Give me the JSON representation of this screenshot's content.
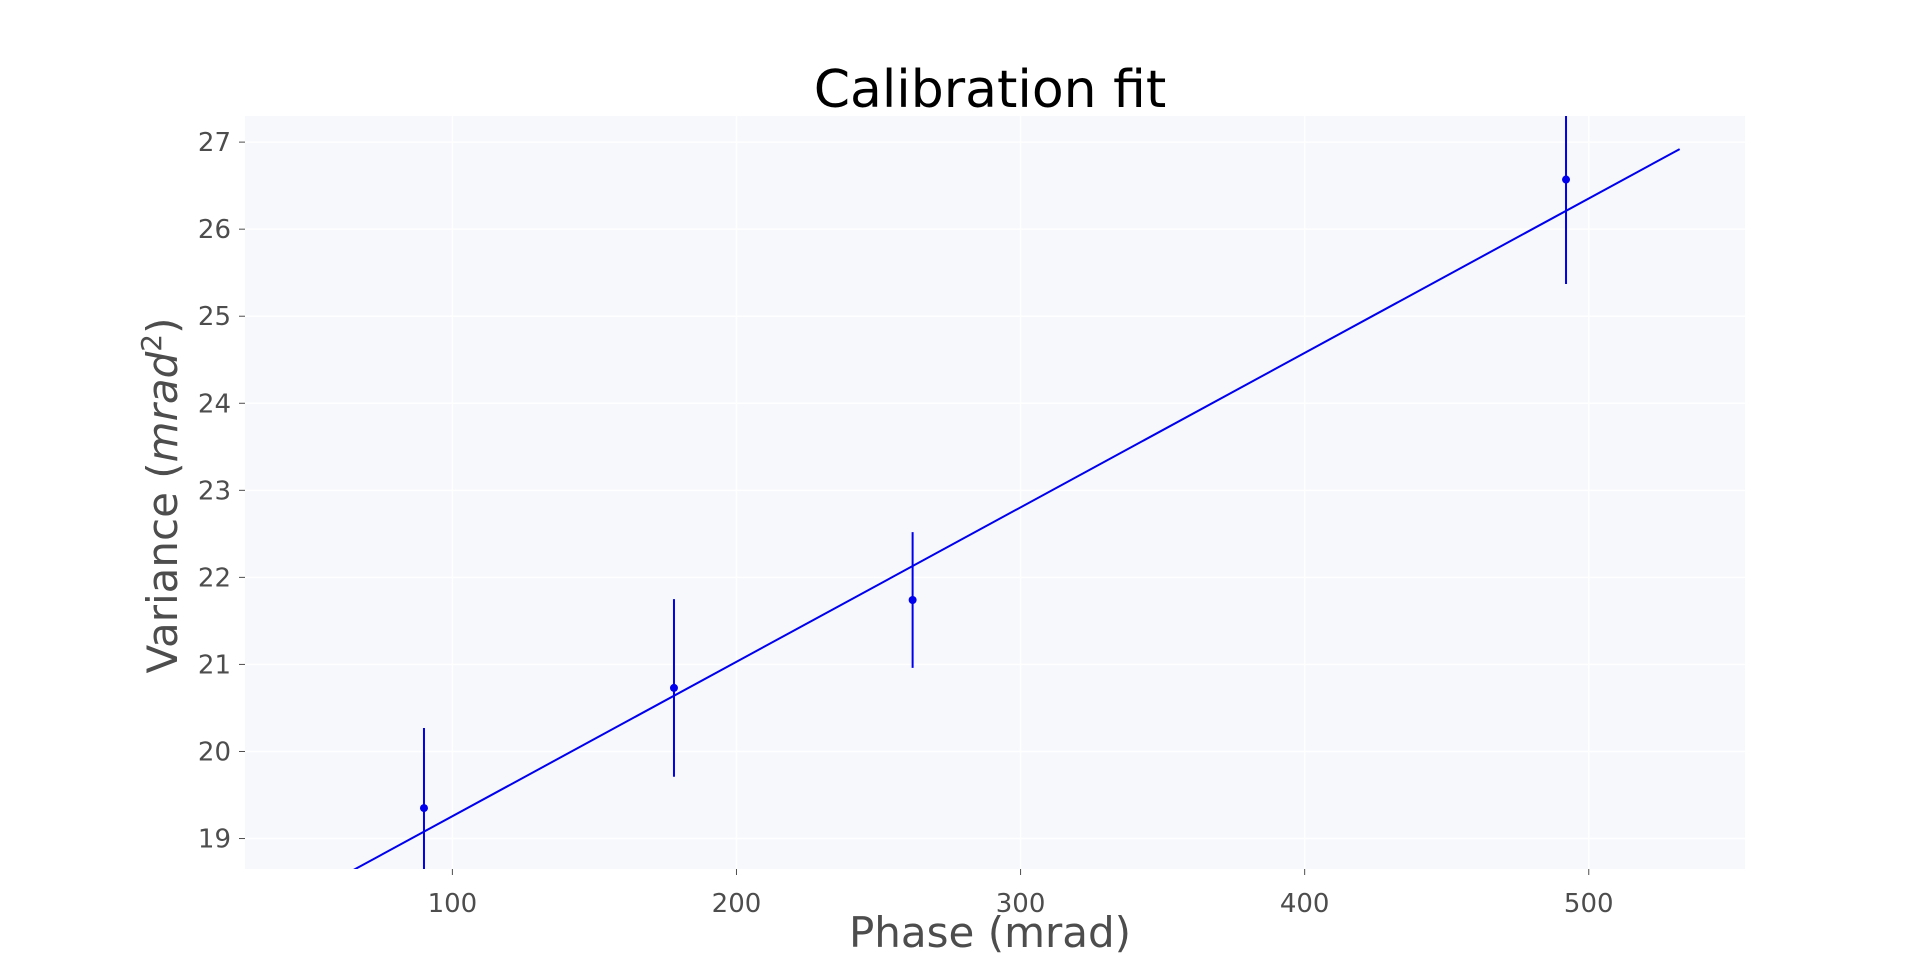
{
  "chart_data": {
    "type": "scatter",
    "title": "Calibration fit",
    "xlabel": "Phase (mrad)",
    "ylabel_main": "Variance (",
    "ylabel_unit": "mrad",
    "ylabel_sup": "2",
    "ylabel_close": ")",
    "xlim": [
      27,
      555
    ],
    "ylim": [
      18.65,
      27.3
    ],
    "x_ticks": [
      100,
      200,
      300,
      400,
      500
    ],
    "y_ticks": [
      19,
      20,
      21,
      22,
      23,
      24,
      25,
      26,
      27
    ],
    "grid": true,
    "series": [
      {
        "kind": "errorbar",
        "color": "#0000ee",
        "points": [
          {
            "x": 90,
            "y": 19.35,
            "err": 0.92
          },
          {
            "x": 178,
            "y": 20.73,
            "err": 1.02
          },
          {
            "x": 262,
            "y": 21.74,
            "err": 0.78
          },
          {
            "x": 492,
            "y": 26.57,
            "err": 1.2
          }
        ]
      },
      {
        "kind": "fit-line",
        "color": "#0000ee",
        "x": [
          63,
          532
        ],
        "y": [
          18.6,
          26.92
        ]
      }
    ]
  },
  "colors": {
    "plot_background": "#f6f8fc",
    "grid": "#ffffff",
    "text": "#4d4d4d",
    "series": "#0000ee"
  }
}
